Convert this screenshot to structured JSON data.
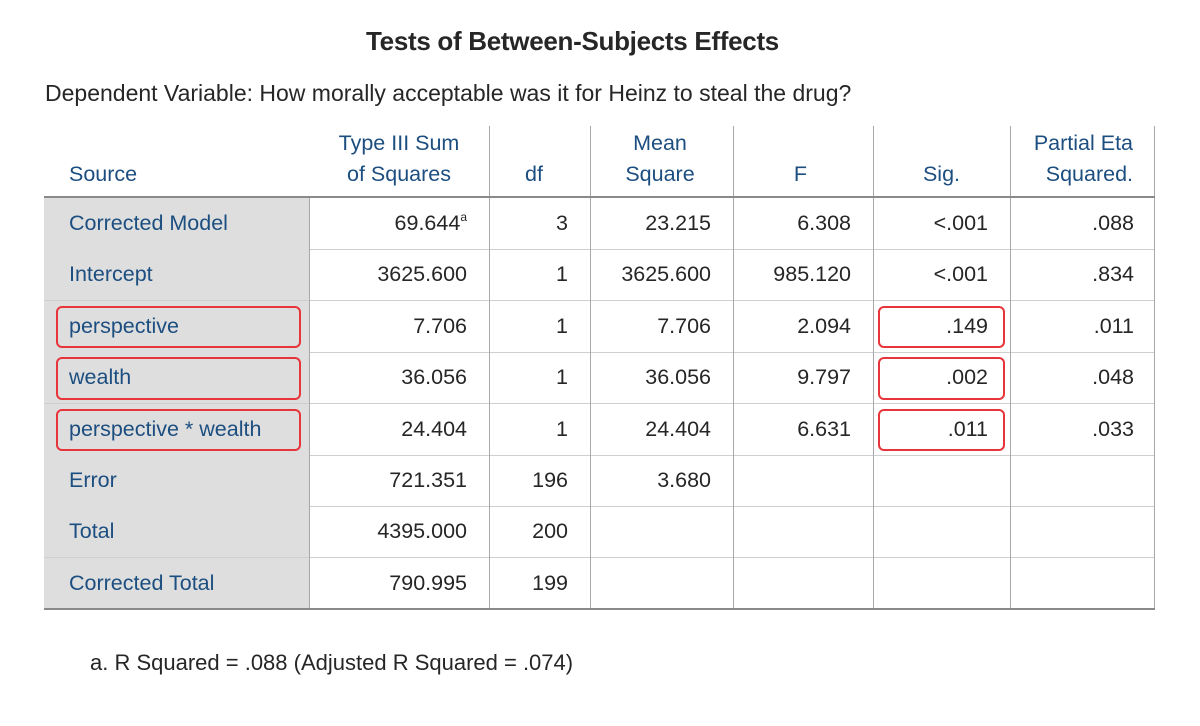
{
  "title": "Tests of Between-Subjects Effects",
  "dependent_variable": "Dependent Variable: How morally acceptable was it for Heinz to steal the drug?",
  "headers": {
    "source": "Source",
    "ss_line1": "Type III Sum",
    "ss_line2": "of Squares",
    "df": "df",
    "ms_line1": "Mean",
    "ms_line2": "Square",
    "f": "F",
    "sig": "Sig.",
    "pes_line1": "Partial Eta",
    "pes_line2": "Squared."
  },
  "rows": [
    {
      "source": "Corrected Model",
      "ss": "69.644",
      "ss_sup": "a",
      "df": "3",
      "ms": "23.215",
      "f": "6.308",
      "sig": "<.001",
      "pes": ".088",
      "highlight": false
    },
    {
      "source": "Intercept",
      "ss": "3625.600",
      "ss_sup": "",
      "df": "1",
      "ms": "3625.600",
      "f": "985.120",
      "sig": "<.001",
      "pes": ".834",
      "highlight": false
    },
    {
      "source": "perspective",
      "ss": "7.706",
      "ss_sup": "",
      "df": "1",
      "ms": "7.706",
      "f": "2.094",
      "sig": ".149",
      "pes": ".011",
      "highlight": true
    },
    {
      "source": "wealth",
      "ss": "36.056",
      "ss_sup": "",
      "df": "1",
      "ms": "36.056",
      "f": "9.797",
      "sig": ".002",
      "pes": ".048",
      "highlight": true
    },
    {
      "source": "perspective * wealth",
      "ss": "24.404",
      "ss_sup": "",
      "df": "1",
      "ms": "24.404",
      "f": "6.631",
      "sig": ".011",
      "pes": ".033",
      "highlight": true
    },
    {
      "source": "Error",
      "ss": "721.351",
      "ss_sup": "",
      "df": "196",
      "ms": "3.680",
      "f": "",
      "sig": "",
      "pes": "",
      "highlight": false
    },
    {
      "source": "Total",
      "ss": "4395.000",
      "ss_sup": "",
      "df": "200",
      "ms": "",
      "f": "",
      "sig": "",
      "pes": "",
      "highlight": false
    },
    {
      "source": "Corrected Total",
      "ss": "790.995",
      "ss_sup": "",
      "df": "199",
      "ms": "",
      "f": "",
      "sig": "",
      "pes": "",
      "highlight": false
    }
  ],
  "footnote": "a. R Squared = .088 (Adjusted R Squared = .074)",
  "colors": {
    "header_text": "#1c4e80",
    "source_bg": "#dedede",
    "highlight_border": "#e8343b"
  }
}
